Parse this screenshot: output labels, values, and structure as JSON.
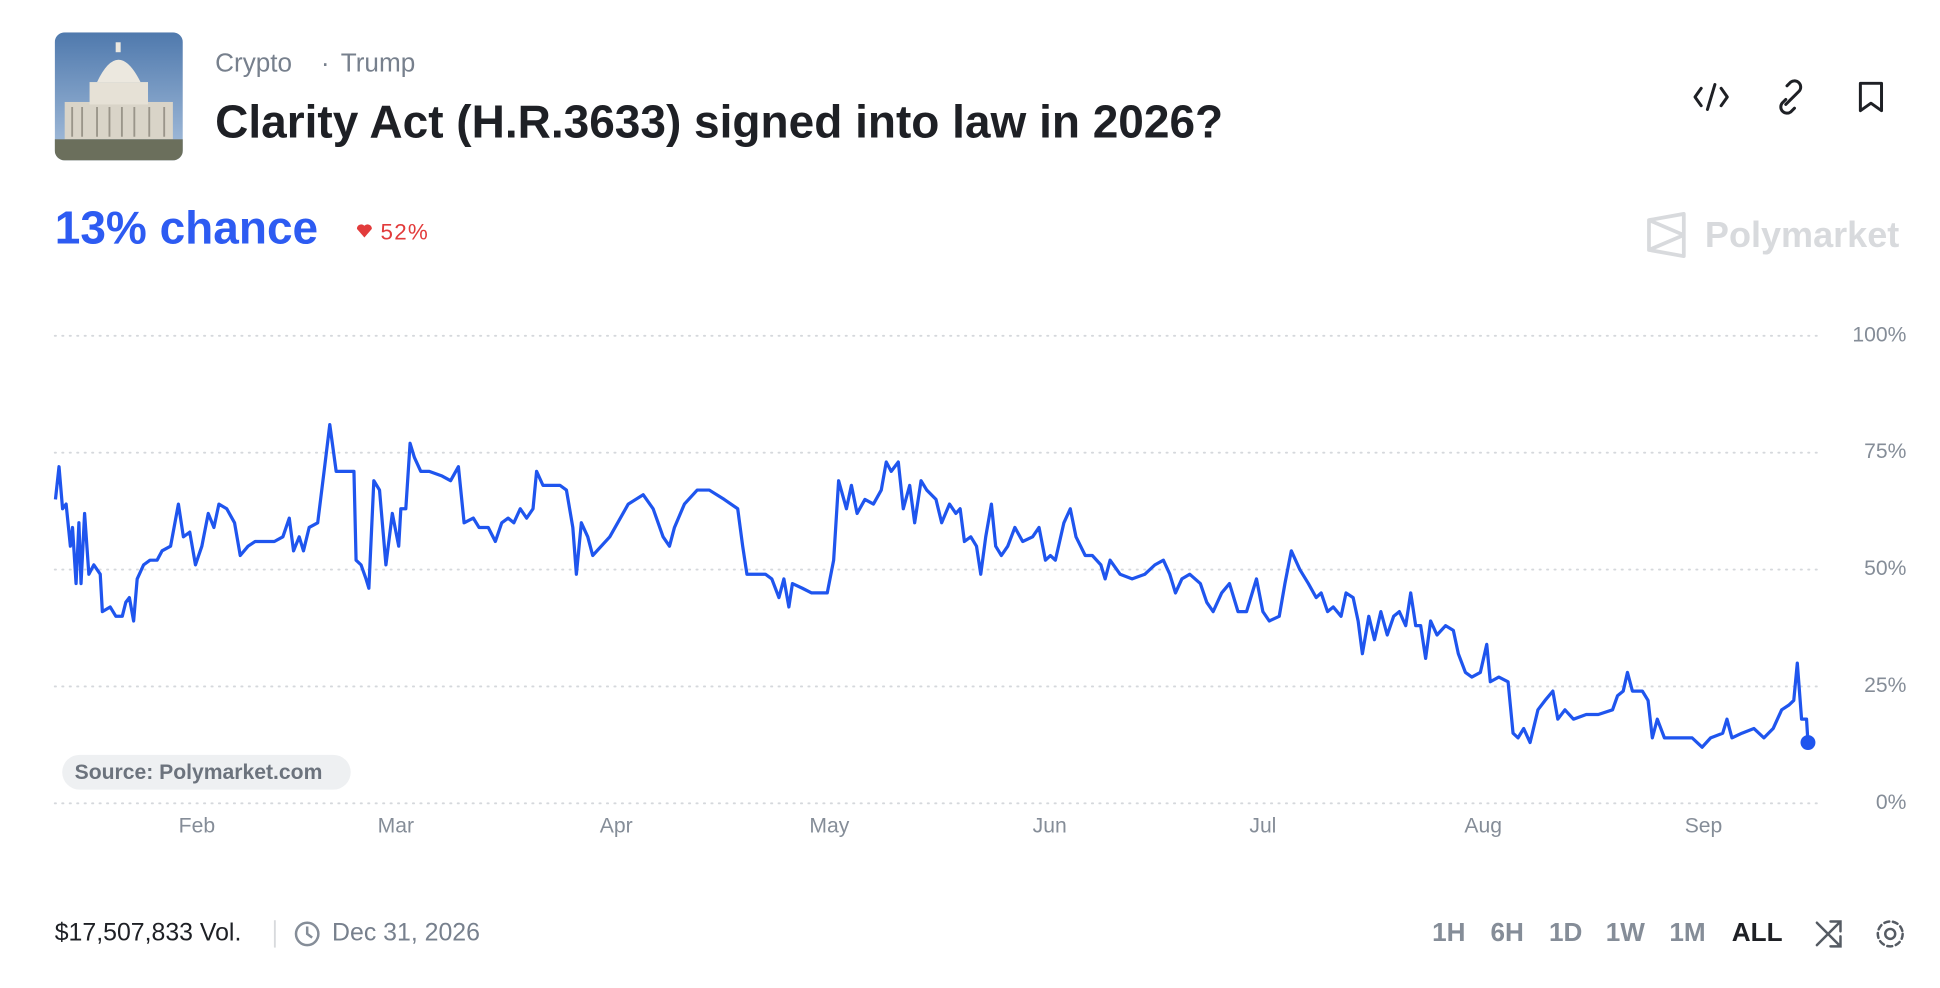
{
  "header": {
    "tags": [
      "Crypto",
      "Trump"
    ],
    "title": "Clarity Act (H.R.3633) signed into law in 2026?",
    "chance": "13% chance",
    "change": "52%",
    "brand": "Polymarket"
  },
  "chart_data": {
    "type": "line",
    "color": "#1f55ee",
    "grid": true,
    "source": "Source: Polymarket.com",
    "xlim": [
      11,
      260
    ],
    "ylim": [
      0,
      100
    ],
    "xticks": [
      {
        "value": 31,
        "label": "Feb"
      },
      {
        "value": 59,
        "label": "Mar"
      },
      {
        "value": 90,
        "label": "Apr"
      },
      {
        "value": 120,
        "label": "May"
      },
      {
        "value": 151,
        "label": "Jun"
      },
      {
        "value": 181,
        "label": "Jul"
      },
      {
        "value": 212,
        "label": "Aug"
      },
      {
        "value": 243,
        "label": "Sep"
      }
    ],
    "yticks": [
      {
        "value": 0,
        "label": "0%"
      },
      {
        "value": 25,
        "label": "25%"
      },
      {
        "value": 50,
        "label": "50%"
      },
      {
        "value": 75,
        "label": "75%"
      },
      {
        "value": 100,
        "label": "100%"
      }
    ],
    "x": [
      11.1,
      11.6,
      12.1,
      12.6,
      13.2,
      13.5,
      14.0,
      14.4,
      14.7,
      15.2,
      15.8,
      16.5,
      17.4,
      17.7,
      18.8,
      19.6,
      20.5,
      21.0,
      21.5,
      22.1,
      22.6,
      23.5,
      24.4,
      25.4,
      26.1,
      27.3,
      28.4,
      29.1,
      30.0,
      30.8,
      31.7,
      32.6,
      33.4,
      34.1,
      35.2,
      36.3,
      37.1,
      38.2,
      39.2,
      41.9,
      43.1,
      44.0,
      44.6,
      45.4,
      46.0,
      46.8,
      48.0,
      48.9,
      49.7,
      50.6,
      52.0,
      53.1,
      53.4,
      54.1,
      54.8,
      55.2,
      55.9,
      56.7,
      57.6,
      58.5,
      59.4,
      59.7,
      60.4,
      61.0,
      61.6,
      62.5,
      63.7,
      65.5,
      66.7,
      67.8,
      68.6,
      69.9,
      70.7,
      72.0,
      73.0,
      73.9,
      74.8,
      75.6,
      76.5,
      77.4,
      78.3,
      78.8,
      79.7,
      80.7,
      82.1,
      83.0,
      83.9,
      84.4,
      85.1,
      86.0,
      86.7,
      89.1,
      91.7,
      93.8,
      95.2,
      96.6,
      97.5,
      98.2,
      99.6,
      101.4,
      103.1,
      105.2,
      107.1,
      107.8,
      108.4,
      111.0,
      111.9,
      112.9,
      113.6,
      114.3,
      114.8,
      116.2,
      117.5,
      119.7,
      120.6,
      121.3,
      122.4,
      123.1,
      123.9,
      125.0,
      126.2,
      127.3,
      128.0,
      128.7,
      129.7,
      130.4,
      131.3,
      132.0,
      132.9,
      133.7,
      135.0,
      135.8,
      136.9,
      137.8,
      138.4,
      139.0,
      139.9,
      140.7,
      141.3,
      142.0,
      142.8,
      143.4,
      144.2,
      145.1,
      146.1,
      147.2,
      148.6,
      149.5,
      150.4,
      151.1,
      151.8,
      153.0,
      153.9,
      154.7,
      156.0,
      157.0,
      158.2,
      158.8,
      159.5,
      160.9,
      162.6,
      164.4,
      165.8,
      167.0,
      167.9,
      168.7,
      169.6,
      170.7,
      172.2,
      173.1,
      174.0,
      175.2,
      176.3,
      177.5,
      178.7,
      180.1,
      181.0,
      181.9,
      183.3,
      184.1,
      185.0,
      186.2,
      187.4,
      188.5,
      189.2,
      190.1,
      190.9,
      192.0,
      192.7,
      193.7,
      194.4,
      195.0,
      195.9,
      196.7,
      197.6,
      198.5,
      199.4,
      200.2,
      201.1,
      201.8,
      202.5,
      203.2,
      203.9,
      204.6,
      205.5,
      206.7,
      207.8,
      208.5,
      209.5,
      210.4,
      211.6,
      212.5,
      213.0,
      214.2,
      215.5,
      216.2,
      216.9,
      217.7,
      218.6,
      219.7,
      220.7,
      221.8,
      222.5,
      223.5,
      224.7,
      226.5,
      228.2,
      230.2,
      230.9,
      231.7,
      232.3,
      233.0,
      234.4,
      235.2,
      235.8,
      236.5,
      237.5,
      239.6,
      241.4,
      242.8,
      244.0,
      245.7,
      246.3,
      247.0,
      248.4,
      250.1,
      251.5,
      252.8,
      254.0,
      255.0,
      255.7,
      256.2,
      256.8,
      257.5,
      257.7
    ],
    "values": [
      65,
      72,
      63,
      64,
      55,
      59,
      47,
      60,
      47,
      62,
      49,
      51,
      49,
      41,
      42,
      40,
      40,
      43,
      44,
      39,
      48,
      51,
      52,
      52,
      54,
      55,
      64,
      57,
      58,
      51,
      55,
      62,
      59,
      64,
      63,
      60,
      53,
      55,
      56,
      56,
      57,
      61,
      54,
      57,
      54,
      59,
      60,
      71,
      81,
      71,
      71,
      71,
      52,
      51,
      48,
      46,
      69,
      67,
      51,
      62,
      55,
      63,
      63,
      77,
      74,
      71,
      71,
      70,
      69,
      72,
      60,
      61,
      59,
      59,
      56,
      60,
      61,
      60,
      63,
      61,
      63,
      71,
      68,
      68,
      68,
      67,
      59,
      49,
      60,
      57,
      53,
      57,
      64,
      66,
      63,
      57,
      55,
      59,
      64,
      67,
      67,
      65,
      63,
      55,
      49,
      49,
      48,
      44,
      48,
      42,
      47,
      46,
      45,
      45,
      52,
      69,
      63,
      68,
      62,
      65,
      64,
      67,
      73,
      71,
      73,
      63,
      68,
      60,
      69,
      67,
      65,
      60,
      64,
      62,
      63,
      56,
      57,
      55,
      49,
      57,
      64,
      55,
      53,
      55,
      59,
      56,
      57,
      59,
      52,
      53,
      52,
      60,
      63,
      57,
      53,
      53,
      51,
      48,
      52,
      49,
      48,
      49,
      51,
      52,
      49,
      45,
      48,
      49,
      47,
      43,
      41,
      45,
      47,
      41,
      41,
      48,
      41,
      39,
      40,
      47,
      54,
      50,
      47,
      44,
      45,
      41,
      42,
      40,
      45,
      44,
      39,
      32,
      40,
      35,
      41,
      36,
      40,
      41,
      38,
      45,
      38,
      38,
      31,
      39,
      36,
      38,
      37,
      32,
      28,
      27,
      28,
      34,
      26,
      27,
      26,
      15,
      14,
      16,
      13,
      20,
      22,
      24,
      18,
      20,
      18,
      19,
      19,
      20,
      23,
      24,
      28,
      24,
      24,
      22,
      14,
      18,
      14,
      14,
      14,
      12,
      14,
      15,
      18,
      14,
      15,
      16,
      14,
      16,
      20,
      21,
      22,
      30,
      18,
      18,
      13
    ]
  },
  "footer": {
    "volume": "$17,507,833 Vol.",
    "end_date": "Dec 31, 2026",
    "ranges": [
      "1H",
      "6H",
      "1D",
      "1W",
      "1M",
      "ALL"
    ]
  }
}
